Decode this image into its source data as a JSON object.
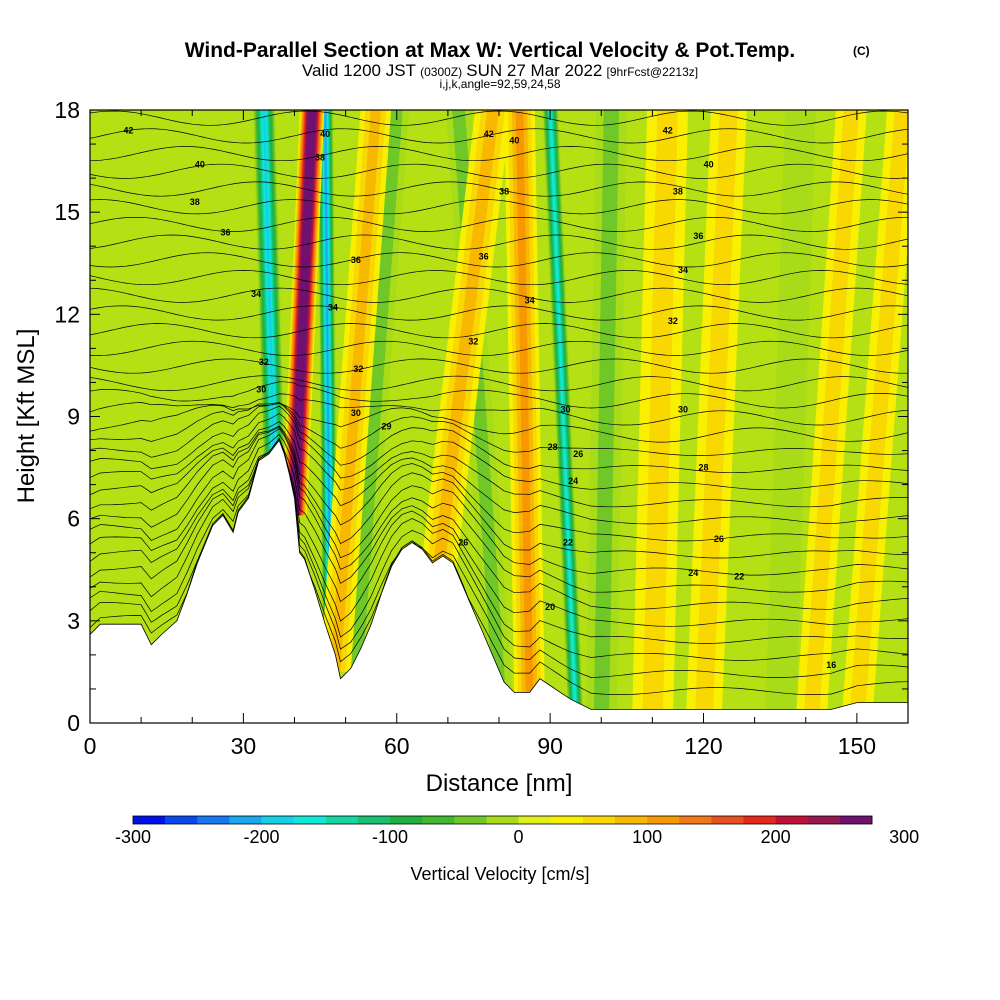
{
  "chart_data": {
    "type": "heatmap",
    "title": "Wind-Parallel Section at Max W: Vertical Velocity & Pot.Temp.",
    "copyright_mark": "(C)",
    "subtitle": {
      "valid_prefix": "Valid 1200 JST",
      "utc": "(0300Z)",
      "date": "SUN 27 Mar 2022",
      "forecast": "[9hrFcst@2213z]"
    },
    "indices_line": "i,j,k,angle=92,59,24,58",
    "xlabel": "Distance [nm]",
    "ylabel": "Height [Kft MSL]",
    "xlim": [
      0,
      160
    ],
    "ylim": [
      0,
      18
    ],
    "x_ticks": [
      "0",
      "30",
      "60",
      "90",
      "120",
      "150"
    ],
    "y_ticks": [
      "0",
      "3",
      "6",
      "9",
      "12",
      "15",
      "18"
    ],
    "colorbar": {
      "label": "Vertical Velocity [cm/s]",
      "min": -300,
      "step": 25,
      "tick_labels": [
        "-300",
        "-200",
        "-100",
        "0",
        "100",
        "200",
        "300"
      ],
      "colors": [
        "#0010e8",
        "#0848f0",
        "#1478f0",
        "#18a8f0",
        "#14d0e8",
        "#10e8d8",
        "#10d8a0",
        "#18c070",
        "#20b040",
        "#40b830",
        "#70c828",
        "#a8dc18",
        "#e0f018",
        "#f8f000",
        "#f8d800",
        "#f8b800",
        "#f89800",
        "#f07818",
        "#e85020",
        "#e82818",
        "#c01038",
        "#981850",
        "#701070"
      ]
    },
    "terrain_kft": [
      [
        0,
        2.6
      ],
      [
        2,
        2.9
      ],
      [
        5,
        2.9
      ],
      [
        10,
        2.9
      ],
      [
        12,
        2.3
      ],
      [
        14,
        2.6
      ],
      [
        17,
        3.0
      ],
      [
        19,
        3.8
      ],
      [
        21,
        4.7
      ],
      [
        24,
        5.8
      ],
      [
        26,
        6.1
      ],
      [
        28,
        5.6
      ],
      [
        29,
        6.2
      ],
      [
        31,
        6.6
      ],
      [
        33,
        7.7
      ],
      [
        35,
        7.9
      ],
      [
        37,
        8.3
      ],
      [
        38,
        7.9
      ],
      [
        39,
        7.3
      ],
      [
        40,
        6.6
      ],
      [
        41,
        5.0
      ],
      [
        42,
        4.8
      ],
      [
        44,
        3.9
      ],
      [
        46,
        2.9
      ],
      [
        48,
        2.0
      ],
      [
        49,
        1.3
      ],
      [
        51,
        1.6
      ],
      [
        53,
        2.2
      ],
      [
        55,
        2.9
      ],
      [
        57,
        3.8
      ],
      [
        59,
        4.6
      ],
      [
        61,
        5.1
      ],
      [
        63,
        5.3
      ],
      [
        65,
        5.1
      ],
      [
        67,
        4.7
      ],
      [
        69,
        4.9
      ],
      [
        71,
        4.7
      ],
      [
        73,
        4.0
      ],
      [
        75,
        3.3
      ],
      [
        77,
        2.6
      ],
      [
        79,
        1.9
      ],
      [
        81,
        1.2
      ],
      [
        83,
        0.9
      ],
      [
        86,
        0.9
      ],
      [
        88,
        1.3
      ],
      [
        90,
        1.1
      ],
      [
        92,
        0.9
      ],
      [
        94,
        0.7
      ],
      [
        98,
        0.4
      ],
      [
        104,
        0.4
      ],
      [
        110,
        0.4
      ],
      [
        120,
        0.4
      ],
      [
        130,
        0.4
      ],
      [
        140,
        0.4
      ],
      [
        145,
        0.4
      ],
      [
        150,
        0.6
      ],
      [
        160,
        0.6
      ]
    ],
    "updraft_bands": [
      {
        "x_bottom": 40,
        "x_top": 43.5,
        "w": 350,
        "width_nm": 2.4
      },
      {
        "x_bottom": 48,
        "x_top": 56,
        "w": 90,
        "width_nm": 3.0
      },
      {
        "x_bottom": 68,
        "x_top": 79,
        "w": 90,
        "width_nm": 3.5
      },
      {
        "x_bottom": 86,
        "x_top": 84,
        "w": 110,
        "width_nm": 3.0
      },
      {
        "x_bottom": 110,
        "x_top": 113,
        "w": 70,
        "width_nm": 4.0
      },
      {
        "x_bottom": 120,
        "x_top": 125,
        "w": 60,
        "width_nm": 3.5
      },
      {
        "x_bottom": 141,
        "x_top": 149,
        "w": 55,
        "width_nm": 3.0
      },
      {
        "x_bottom": 150,
        "x_top": 159,
        "w": 50,
        "width_nm": 3.0
      }
    ],
    "downdraft_bands": [
      {
        "x_bottom": 36,
        "x_top": 34,
        "w": -200,
        "width_nm": 2.2
      },
      {
        "x_bottom": 47,
        "x_top": 46,
        "w": -240,
        "width_nm": 1.6
      },
      {
        "x_bottom": 95,
        "x_top": 90,
        "w": -180,
        "width_nm": 1.6
      },
      {
        "x_bottom": 52,
        "x_top": 60,
        "w": -70,
        "width_nm": 2.5
      },
      {
        "x_bottom": 80,
        "x_top": 72,
        "w": -60,
        "width_nm": 2.5
      },
      {
        "x_bottom": 100,
        "x_top": 102,
        "w": -50,
        "width_nm": 3.0
      },
      {
        "x_bottom": 135,
        "x_top": 139,
        "w": -45,
        "width_nm": 3.0
      }
    ],
    "theta_contour_labels": [
      {
        "x": 7.5,
        "y": 17.4,
        "text": "42"
      },
      {
        "x": 21.5,
        "y": 16.4,
        "text": "40"
      },
      {
        "x": 20.5,
        "y": 15.3,
        "text": "38"
      },
      {
        "x": 26.5,
        "y": 14.4,
        "text": "36"
      },
      {
        "x": 32.5,
        "y": 12.6,
        "text": "34"
      },
      {
        "x": 34,
        "y": 10.6,
        "text": "32"
      },
      {
        "x": 33.5,
        "y": 9.8,
        "text": "30"
      },
      {
        "x": 46,
        "y": 17.3,
        "text": "40"
      },
      {
        "x": 45,
        "y": 16.6,
        "text": "38"
      },
      {
        "x": 47.5,
        "y": 12.2,
        "text": "34"
      },
      {
        "x": 52,
        "y": 13.6,
        "text": "36"
      },
      {
        "x": 52.5,
        "y": 10.4,
        "text": "32"
      },
      {
        "x": 52,
        "y": 9.1,
        "text": "30"
      },
      {
        "x": 58,
        "y": 8.7,
        "text": "29"
      },
      {
        "x": 78,
        "y": 17.3,
        "text": "42"
      },
      {
        "x": 83,
        "y": 17.1,
        "text": "40"
      },
      {
        "x": 81,
        "y": 15.6,
        "text": "38"
      },
      {
        "x": 77,
        "y": 13.7,
        "text": "36"
      },
      {
        "x": 86,
        "y": 12.4,
        "text": "34"
      },
      {
        "x": 75,
        "y": 11.2,
        "text": "32"
      },
      {
        "x": 93,
        "y": 9.2,
        "text": "30"
      },
      {
        "x": 90.5,
        "y": 8.1,
        "text": "28"
      },
      {
        "x": 95.5,
        "y": 7.9,
        "text": "26"
      },
      {
        "x": 94.5,
        "y": 7.1,
        "text": "24"
      },
      {
        "x": 93.5,
        "y": 5.3,
        "text": "22"
      },
      {
        "x": 90,
        "y": 3.4,
        "text": "20"
      },
      {
        "x": 73,
        "y": 5.3,
        "text": "26"
      },
      {
        "x": 113,
        "y": 17.4,
        "text": "42"
      },
      {
        "x": 121,
        "y": 16.4,
        "text": "40"
      },
      {
        "x": 115,
        "y": 15.6,
        "text": "38"
      },
      {
        "x": 119,
        "y": 14.3,
        "text": "36"
      },
      {
        "x": 116,
        "y": 13.3,
        "text": "34"
      },
      {
        "x": 114,
        "y": 11.8,
        "text": "32"
      },
      {
        "x": 116,
        "y": 9.2,
        "text": "30"
      },
      {
        "x": 120,
        "y": 7.5,
        "text": "28"
      },
      {
        "x": 123,
        "y": 5.4,
        "text": "26"
      },
      {
        "x": 118,
        "y": 4.4,
        "text": "24"
      },
      {
        "x": 127,
        "y": 4.3,
        "text": "22"
      },
      {
        "x": 145,
        "y": 1.7,
        "text": "16"
      }
    ]
  }
}
